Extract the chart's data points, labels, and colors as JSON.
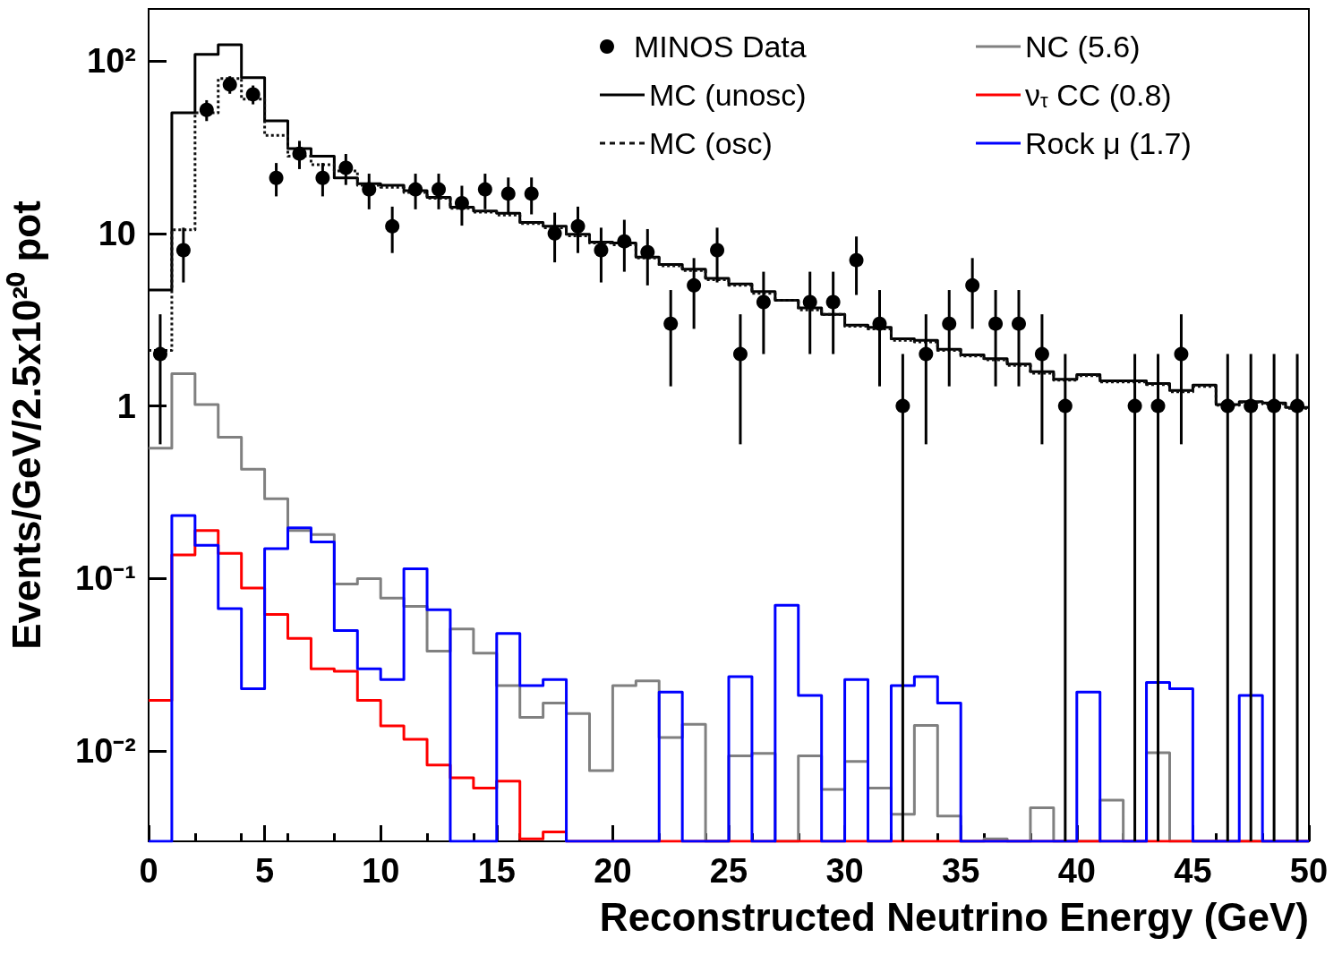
{
  "chart_data": {
    "type": "histogram",
    "xlabel": "Reconstructed Neutrino Energy (GeV)",
    "ylabel": "Events/GeV/2.5x10²⁰ pot",
    "bins": [
      0,
      1,
      2,
      3,
      4,
      5,
      6,
      7,
      8,
      9,
      10,
      11,
      12,
      13,
      14,
      15,
      16,
      17,
      18,
      19,
      20,
      21,
      22,
      23,
      24,
      25,
      26,
      27,
      28,
      29,
      30,
      31,
      32,
      33,
      34,
      35,
      36,
      37,
      38,
      39,
      40,
      41,
      42,
      43,
      44,
      45,
      46,
      47,
      48,
      49,
      50
    ],
    "xlim": [
      0,
      50
    ],
    "xticks": [
      0,
      5,
      10,
      15,
      20,
      25,
      30,
      35,
      40,
      45,
      50
    ],
    "ylim": [
      0.003,
      200
    ],
    "yticks": [
      {
        "value": 0.01,
        "label": "10⁻²"
      },
      {
        "value": 0.1,
        "label": "10⁻¹"
      },
      1,
      10,
      {
        "value": 100,
        "label": "10²"
      }
    ],
    "log": "y",
    "legend": "top right",
    "marker": "none",
    "series": [
      {
        "name": "MINOS Data",
        "type": "scatter",
        "marker": "circle",
        "color": "#000000",
        "x": [
          0.5,
          1.5,
          2.5,
          3.5,
          4.5,
          5.5,
          6.5,
          7.5,
          8.5,
          9.5,
          10.5,
          11.5,
          12.5,
          13.5,
          14.5,
          15.5,
          16.5,
          17.5,
          18.5,
          19.5,
          20.5,
          21.5,
          22.5,
          23.5,
          24.5,
          25.5,
          26.5,
          28.5,
          29.5,
          30.5,
          31.5,
          32.5,
          33.5,
          34.5,
          35.5,
          36.5,
          37.5,
          38.5,
          39.5,
          42.5,
          43.5,
          44.5,
          46.5,
          47.5,
          48.5,
          49.5
        ],
        "values": [
          2,
          8,
          52,
          73,
          64,
          21,
          29,
          21,
          24,
          18,
          11,
          18,
          18,
          15,
          18,
          17,
          17,
          10,
          11,
          8,
          9,
          7.8,
          3,
          5,
          8,
          2,
          4,
          4,
          4,
          7,
          3,
          1,
          2,
          3,
          5,
          3,
          3,
          2,
          1,
          1,
          1,
          2,
          1,
          1,
          1,
          1
        ],
        "errors": [
          [
            0.6,
            3.4
          ],
          [
            5.2,
            10.8
          ],
          [
            44.8,
            59.2
          ],
          [
            64.5,
            81.5
          ],
          [
            56,
            72
          ],
          [
            16.4,
            25.6
          ],
          [
            23.6,
            34.4
          ],
          [
            16.4,
            25.6
          ],
          [
            19.1,
            28.9
          ],
          [
            13.8,
            22.2
          ],
          [
            7.7,
            14.3
          ],
          [
            13.8,
            22.2
          ],
          [
            13.8,
            22.2
          ],
          [
            11.1,
            18.9
          ],
          [
            13.8,
            22.2
          ],
          [
            12.9,
            21.1
          ],
          [
            12.9,
            21.1
          ],
          [
            6.8,
            13.2
          ],
          [
            7.7,
            14.3
          ],
          [
            5.2,
            10.8
          ],
          [
            6,
            12
          ],
          [
            5,
            10.6
          ],
          [
            1.3,
            4.7
          ],
          [
            2.8,
            7.2
          ],
          [
            5.2,
            10.8
          ],
          [
            0.6,
            3.4
          ],
          [
            2,
            6
          ],
          [
            2,
            6
          ],
          [
            2,
            6
          ],
          [
            4.4,
            9.6
          ],
          [
            1.3,
            4.7
          ],
          [
            0.003,
            2
          ],
          [
            0.6,
            3.4
          ],
          [
            1.3,
            4.7
          ],
          [
            2.8,
            7.2
          ],
          [
            1.3,
            4.7
          ],
          [
            1.3,
            4.7
          ],
          [
            0.6,
            3.4
          ],
          [
            0.003,
            2
          ],
          [
            0.003,
            2
          ],
          [
            0.003,
            2
          ],
          [
            0.6,
            3.4
          ],
          [
            0.003,
            2
          ],
          [
            0.003,
            2
          ],
          [
            0.003,
            2
          ],
          [
            0.003,
            2
          ]
        ]
      },
      {
        "name": "MC (unosc)",
        "color": "#000000",
        "line_style": "solid",
        "values": [
          4.7,
          50,
          109,
          124,
          80,
          45,
          31,
          28,
          21,
          19.4,
          19,
          17.7,
          16.2,
          14.2,
          13.5,
          13.1,
          11.6,
          11,
          9.9,
          8.9,
          8.8,
          7.3,
          6.6,
          6.2,
          5.5,
          5.1,
          4.6,
          4.1,
          3.7,
          3.4,
          2.94,
          2.86,
          2.45,
          2.4,
          2.13,
          1.98,
          1.88,
          1.75,
          1.58,
          1.43,
          1.52,
          1.4,
          1.4,
          1.35,
          1.23,
          1.32,
          1.02,
          1.06,
          1.04,
          0.98
        ]
      },
      {
        "name": "MC (osc)",
        "color": "#111111",
        "line_style": "dotted",
        "values": [
          2.1,
          10.5,
          50,
          79,
          60,
          37,
          28,
          25,
          23,
          19,
          18.5,
          17.3,
          16,
          14,
          13.3,
          12.8,
          11.4,
          10.8,
          9.7,
          8.8,
          8.6,
          7.2,
          6.5,
          6.1,
          5.4,
          5,
          4.5,
          4.1,
          3.6,
          3.4,
          2.9,
          2.8,
          2.4,
          2.35,
          2.1,
          1.95,
          1.85,
          1.72,
          1.55,
          1.41,
          1.5,
          1.38,
          1.38,
          1.33,
          1.21,
          1.3,
          1.01,
          1.05,
          1.03,
          0.97
        ]
      },
      {
        "name": "NC (5.6)",
        "color": "#808080",
        "line_style": "solid",
        "values": [
          0.57,
          1.54,
          1.02,
          0.66,
          0.43,
          0.29,
          0.19,
          0.18,
          0.093,
          0.1,
          0.077,
          0.069,
          0.038,
          0.051,
          0.037,
          0.024,
          0.0157,
          0.019,
          0.0165,
          0.0077,
          0.024,
          0.0255,
          0.012,
          0.0143,
          null,
          0.0094,
          0.0097,
          null,
          0.0094,
          0.006,
          0.0087,
          0.0061,
          0.0043,
          0.0141,
          0.0042,
          null,
          0.0031,
          null,
          0.0047,
          null,
          null,
          0.0052,
          null,
          0.0098,
          null,
          null,
          null,
          null,
          null,
          null
        ]
      },
      {
        "name": "ν$_{τ}$ CC (0.8)",
        "color": "#ff0000",
        "line_style": "solid",
        "values": [
          0.0197,
          0.137,
          0.19,
          0.14,
          0.088,
          0.062,
          0.045,
          0.03,
          0.029,
          0.0197,
          0.014,
          0.0117,
          0.0083,
          0.007,
          0.0061,
          0.0067,
          0.0031,
          0.0034,
          null,
          null,
          null,
          null,
          null,
          null,
          null,
          null,
          null,
          null,
          null,
          null,
          null,
          null,
          null,
          null,
          null,
          null,
          null,
          null,
          null,
          null,
          null,
          null,
          null,
          null,
          null,
          null,
          null,
          null,
          null,
          null
        ]
      },
      {
        "name": "Rock μ (1.7)",
        "color": "#0000ff",
        "line_style": "solid",
        "values": [
          null,
          0.232,
          0.156,
          0.067,
          0.023,
          0.149,
          0.197,
          0.163,
          0.05,
          0.03,
          0.026,
          0.114,
          0.066,
          null,
          null,
          0.048,
          0.024,
          0.026,
          null,
          null,
          null,
          null,
          0.022,
          null,
          null,
          0.027,
          null,
          0.07,
          0.021,
          null,
          0.026,
          null,
          0.024,
          0.027,
          0.019,
          null,
          null,
          null,
          null,
          null,
          0.022,
          null,
          null,
          0.025,
          0.023,
          null,
          null,
          0.021,
          null,
          null
        ]
      }
    ]
  }
}
